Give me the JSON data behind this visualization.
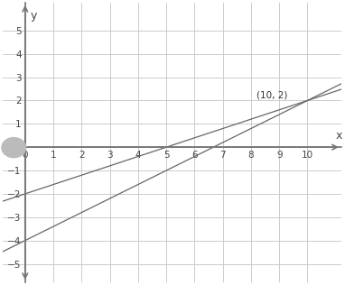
{
  "xlabel": "x",
  "ylabel": "y",
  "xlim": [
    -0.8,
    11.2
  ],
  "ylim": [
    -5.8,
    6.2
  ],
  "xticks": [
    0,
    1,
    2,
    3,
    4,
    5,
    6,
    7,
    8,
    9,
    10
  ],
  "yticks": [
    -5,
    -4,
    -3,
    -2,
    -1,
    0,
    1,
    2,
    3,
    4,
    5
  ],
  "line1_m": 0.4,
  "line1_b": -2,
  "line2_m": 0.6,
  "line2_b": -4,
  "line_color": "#666666",
  "intersection_x": 10,
  "intersection_y": 2,
  "intersection_label": "(10, 2)",
  "background_color": "#ffffff",
  "grid_color": "#cccccc",
  "axis_color": "#777777",
  "circle_color": "#bbbbbb",
  "tick_fontsize": 7.5,
  "label_fontsize": 9
}
